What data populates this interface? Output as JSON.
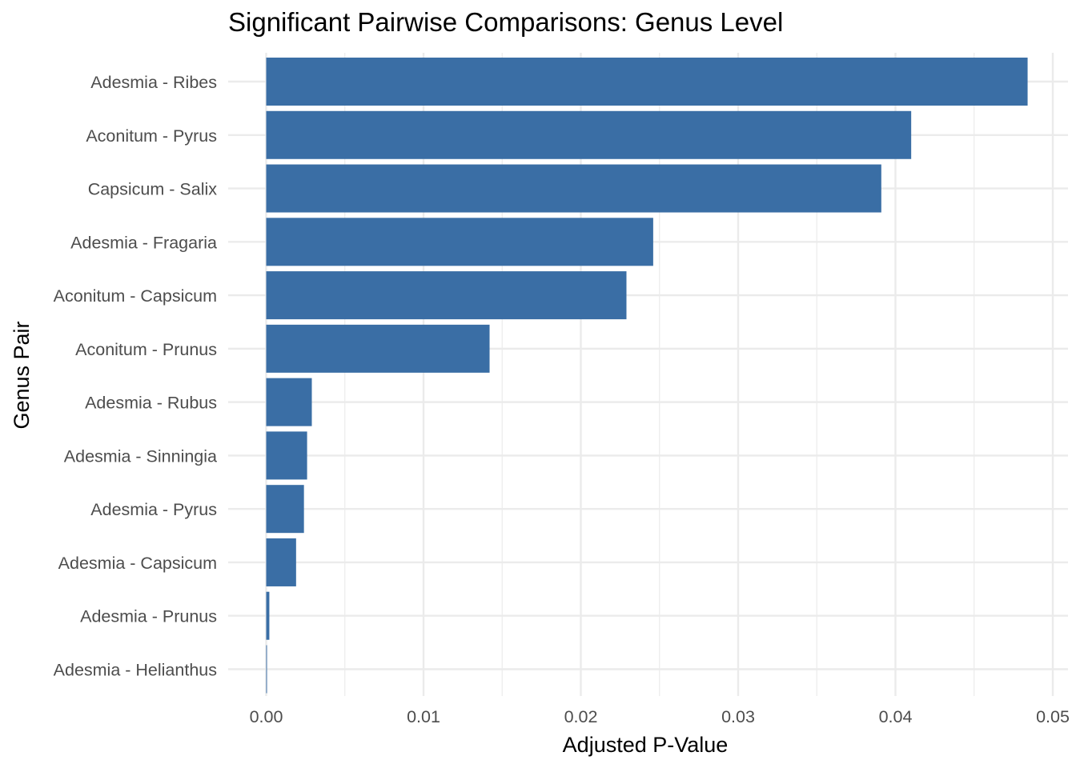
{
  "chart_data": {
    "type": "bar",
    "orientation": "horizontal",
    "title": "Significant Pairwise Comparisons: Genus Level",
    "xlabel": "Adjusted P-Value",
    "ylabel": "Genus Pair",
    "categories": [
      "Adesmia - Ribes",
      "Aconitum - Pyrus",
      "Capsicum - Salix",
      "Adesmia - Fragaria",
      "Aconitum - Capsicum",
      "Aconitum - Prunus",
      "Adesmia - Rubus",
      "Adesmia - Sinningia",
      "Adesmia - Pyrus",
      "Adesmia - Capsicum",
      "Adesmia - Prunus",
      "Adesmia - Helianthus"
    ],
    "values": [
      0.0484,
      0.041,
      0.0391,
      0.0246,
      0.0229,
      0.0142,
      0.0029,
      0.0026,
      0.0024,
      0.0019,
      0.0002,
      5e-05
    ],
    "xlim": [
      -0.0025,
      0.0505
    ],
    "xticks": [
      0,
      0.01,
      0.02,
      0.03,
      0.04,
      0.05
    ],
    "xtick_labels": [
      "0.00",
      "0.01",
      "0.02",
      "0.03",
      "0.04",
      "0.05"
    ],
    "grid": true,
    "legend": "none",
    "bar_color": "#3a6ea5",
    "grid_color": "#ebebeb"
  }
}
